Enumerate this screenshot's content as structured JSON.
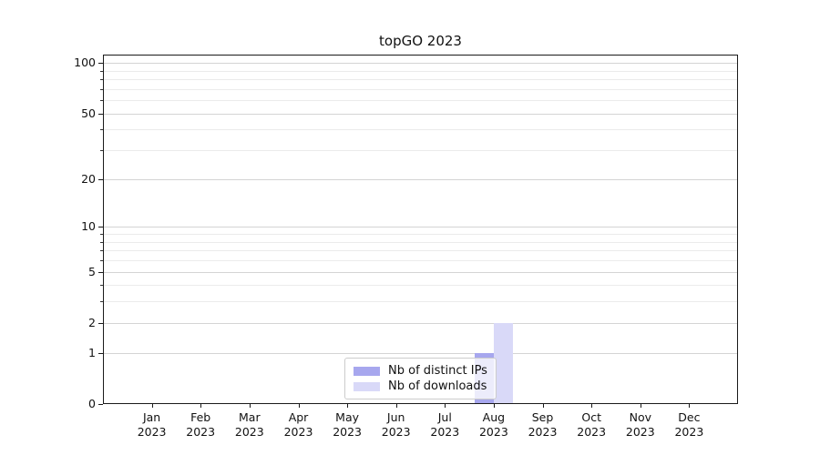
{
  "chart_data": {
    "type": "bar",
    "title": "topGO 2023",
    "scale": "log1p",
    "ylim": [
      0,
      112
    ],
    "grid": true,
    "legend_position": "bottom-center",
    "categories": [
      {
        "month": "Jan",
        "year": "2023"
      },
      {
        "month": "Feb",
        "year": "2023"
      },
      {
        "month": "Mar",
        "year": "2023"
      },
      {
        "month": "Apr",
        "year": "2023"
      },
      {
        "month": "May",
        "year": "2023"
      },
      {
        "month": "Jun",
        "year": "2023"
      },
      {
        "month": "Jul",
        "year": "2023"
      },
      {
        "month": "Aug",
        "year": "2023"
      },
      {
        "month": "Sep",
        "year": "2023"
      },
      {
        "month": "Oct",
        "year": "2023"
      },
      {
        "month": "Nov",
        "year": "2023"
      },
      {
        "month": "Dec",
        "year": "2023"
      }
    ],
    "series": [
      {
        "name": "Nb of distinct IPs",
        "color": "#a7a7ee",
        "values": [
          0,
          0,
          0,
          0,
          0,
          0,
          0,
          1,
          0,
          0,
          0,
          0
        ]
      },
      {
        "name": "Nb of downloads",
        "color": "#d9d9f8",
        "values": [
          0,
          0,
          0,
          0,
          0,
          0,
          0,
          2,
          0,
          0,
          0,
          0
        ]
      }
    ],
    "yticks_major": [
      0,
      1,
      2,
      5,
      10,
      20,
      50,
      100
    ],
    "yticks_minor": [
      3,
      4,
      6,
      7,
      8,
      9,
      30,
      40,
      60,
      70,
      80,
      90
    ]
  },
  "colors": {
    "major_grid": "#d4d4d4",
    "minor_grid": "#ebebeb",
    "spine": "#1a1a1a",
    "text": "#111111"
  }
}
